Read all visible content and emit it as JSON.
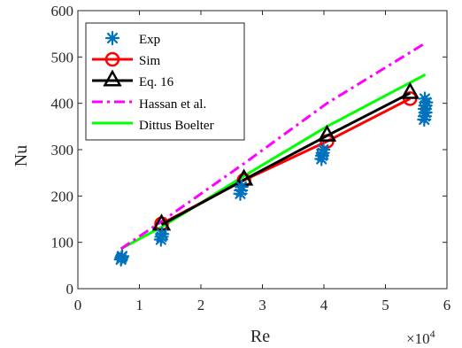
{
  "chart_data": {
    "type": "line",
    "xlabel": "Re",
    "ylabel": "Nu",
    "x_multiplier_label": "×10",
    "x_multiplier_exp": "4",
    "xlim": [
      0,
      60000
    ],
    "ylim": [
      0,
      600
    ],
    "x_tick_values": [
      0,
      10000,
      20000,
      30000,
      40000,
      50000,
      60000
    ],
    "x_tick_labels": [
      "0",
      "1",
      "2",
      "3",
      "4",
      "5",
      "6"
    ],
    "y_tick_values": [
      0,
      100,
      200,
      300,
      400,
      500,
      600
    ],
    "y_tick_labels": [
      "0",
      "100",
      "200",
      "300",
      "400",
      "500",
      "600"
    ],
    "legend_position": "top-left",
    "series": [
      {
        "name": "Exp",
        "style": "asterisk-markers",
        "color": "#0072BD",
        "points": [
          [
            7000,
            63
          ],
          [
            7100,
            67
          ],
          [
            7200,
            70
          ],
          [
            13500,
            106
          ],
          [
            13600,
            112
          ],
          [
            13700,
            118
          ],
          [
            26400,
            205
          ],
          [
            26500,
            212
          ],
          [
            26600,
            220
          ],
          [
            39600,
            280
          ],
          [
            39700,
            287
          ],
          [
            39800,
            293
          ],
          [
            39900,
            300
          ],
          [
            56300,
            365
          ],
          [
            56400,
            372
          ],
          [
            56500,
            380
          ],
          [
            56400,
            388
          ],
          [
            56500,
            395
          ],
          [
            56600,
            402
          ],
          [
            56400,
            410
          ]
        ]
      },
      {
        "name": "Sim",
        "style": "line-circle",
        "color": "#FF0000",
        "points": [
          [
            13600,
            140
          ],
          [
            27000,
            234
          ],
          [
            40500,
            318
          ],
          [
            54000,
            410
          ]
        ]
      },
      {
        "name": "Eq. 16",
        "style": "line-triangle",
        "color": "#000000",
        "points": [
          [
            13600,
            138
          ],
          [
            27000,
            235
          ],
          [
            40500,
            330
          ],
          [
            54000,
            422
          ]
        ]
      },
      {
        "name": "Hassan et al.",
        "style": "dashdot",
        "color": "#FF00FF",
        "points": [
          [
            7000,
            86
          ],
          [
            13600,
            145
          ],
          [
            27000,
            270
          ],
          [
            40500,
            400
          ],
          [
            56500,
            530
          ]
        ]
      },
      {
        "name": "Dittus Boelter",
        "style": "solid",
        "color": "#00FF00",
        "points": [
          [
            7000,
            86
          ],
          [
            13600,
            133
          ],
          [
            27000,
            243
          ],
          [
            40500,
            350
          ],
          [
            56500,
            462
          ]
        ]
      }
    ]
  }
}
